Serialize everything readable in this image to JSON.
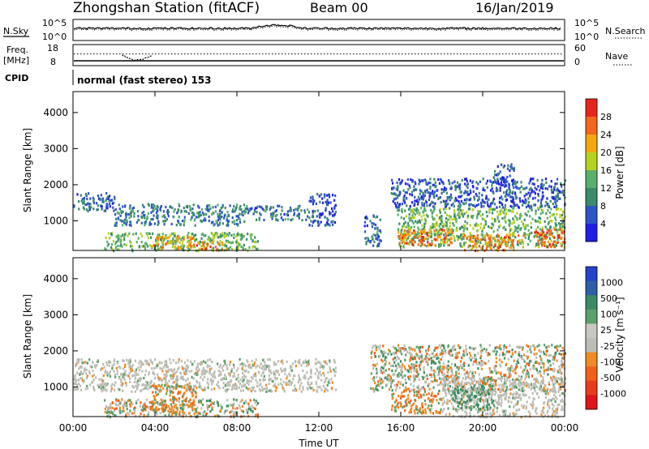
{
  "header": {
    "station": "Zhongshan Station (fitACF)",
    "beam": "Beam 00",
    "date": "16/Jan/2019"
  },
  "top_panels": {
    "nsky_label": "N.Sky",
    "nsky_ticks": [
      "10^5",
      "10^0"
    ],
    "nsearch_label": "N.Search",
    "nsearch_ticks": [
      "10^5",
      "10^0"
    ],
    "freq_label_1": "Freq.",
    "freq_label_2": "[MHz]",
    "freq_ticks": [
      "18",
      "8"
    ],
    "nave_label": "Nave",
    "nave_ticks": [
      "60",
      "0"
    ],
    "cpid_label": "CPID",
    "cpid_text": "normal (fast stereo) 153"
  },
  "colors": {
    "power": [
      "#1f1fe6",
      "#2e55c8",
      "#3a8a6c",
      "#58b06a",
      "#b7d21e",
      "#f2a80f",
      "#f4661a",
      "#e8251c"
    ],
    "velocity": [
      "#2244c8",
      "#2e5fa8",
      "#3a8a62",
      "#5aa06a",
      "#c8c8c0",
      "#bdbdb6",
      "#f08a22",
      "#f06018",
      "#e83c1a",
      "#e0141a"
    ],
    "ground_scatter": "#bdbdb6"
  },
  "chart_data": [
    {
      "type": "heatmap",
      "name": "power",
      "xlabel": "",
      "ylabel": "Slant Range [km]",
      "x_ticks": [
        "00:00",
        "04:00",
        "08:00",
        "12:00",
        "16:00",
        "20:00",
        "00:00"
      ],
      "x_range_hours": [
        0,
        24
      ],
      "y_ticks": [
        "1000",
        "2000",
        "3000",
        "4000"
      ],
      "ylim": [
        180,
        4580
      ],
      "colorbar_label": "Power [dB]",
      "colorbar_ticks": [
        "28",
        "24",
        "20",
        "16",
        "12",
        "8",
        "4"
      ],
      "colorbar_range": [
        0,
        32
      ],
      "scatter_bands": [
        {
          "t0": 0.0,
          "t1": 2.0,
          "r0": 1300,
          "r1": 1800,
          "p": 7
        },
        {
          "t0": 2.0,
          "t1": 8.5,
          "r0": 900,
          "r1": 1500,
          "p": 9
        },
        {
          "t0": 8.5,
          "t1": 11.5,
          "r0": 1050,
          "r1": 1450,
          "p": 8
        },
        {
          "t0": 11.5,
          "t1": 12.8,
          "r0": 900,
          "r1": 1800,
          "p": 6
        },
        {
          "t0": 1.5,
          "t1": 9.0,
          "r0": 200,
          "r1": 700,
          "p": 14
        },
        {
          "t0": 3.8,
          "t1": 5.8,
          "r0": 250,
          "r1": 600,
          "p": 22
        },
        {
          "t0": 5.5,
          "t1": 7.5,
          "r0": 220,
          "r1": 450,
          "p": 24
        },
        {
          "t0": 14.2,
          "t1": 15.0,
          "r0": 300,
          "r1": 1200,
          "p": 8
        },
        {
          "t0": 15.5,
          "t1": 24.0,
          "r0": 1400,
          "r1": 2200,
          "p": 6
        },
        {
          "t0": 15.8,
          "t1": 24.0,
          "r0": 300,
          "r1": 1400,
          "p": 14
        },
        {
          "t0": 15.8,
          "t1": 18.5,
          "r0": 350,
          "r1": 800,
          "p": 25
        },
        {
          "t0": 19.0,
          "t1": 22.0,
          "r0": 200,
          "r1": 650,
          "p": 24
        },
        {
          "t0": 22.5,
          "t1": 24.0,
          "r0": 300,
          "r1": 800,
          "p": 26
        },
        {
          "t0": 20.5,
          "t1": 21.5,
          "r0": 2000,
          "r1": 2600,
          "p": 5
        }
      ]
    },
    {
      "type": "heatmap",
      "name": "velocity",
      "xlabel": "Time UT",
      "ylabel": "Slant Range [km]",
      "x_ticks": [
        "00:00",
        "04:00",
        "08:00",
        "12:00",
        "16:00",
        "20:00",
        "00:00"
      ],
      "x_range_hours": [
        0,
        24
      ],
      "y_ticks": [
        "1000",
        "2000",
        "3000",
        "4000"
      ],
      "ylim": [
        180,
        4580
      ],
      "colorbar_label": "Velocity [m s⁻¹]",
      "colorbar_ticks": [
        "1000",
        "500",
        "100",
        "25",
        "-25",
        "-100",
        "-500",
        "-1000"
      ],
      "scatter_bands": [
        {
          "t0": 0.0,
          "t1": 12.8,
          "r0": 900,
          "r1": 1800,
          "v": "ground"
        },
        {
          "t0": 1.5,
          "t1": 9.0,
          "r0": 200,
          "r1": 700,
          "v": "mixed"
        },
        {
          "t0": 3.8,
          "t1": 6.0,
          "r0": 250,
          "r1": 1100,
          "v": "away"
        },
        {
          "t0": 14.5,
          "t1": 24.0,
          "r0": 900,
          "r1": 2200,
          "v": "mixed"
        },
        {
          "t0": 15.5,
          "t1": 18.0,
          "r0": 300,
          "r1": 900,
          "v": "away"
        },
        {
          "t0": 18.0,
          "t1": 24.0,
          "r0": 200,
          "r1": 1300,
          "v": "ground"
        },
        {
          "t0": 18.5,
          "t1": 20.5,
          "r0": 400,
          "r1": 1100,
          "v": "toward"
        }
      ]
    }
  ]
}
